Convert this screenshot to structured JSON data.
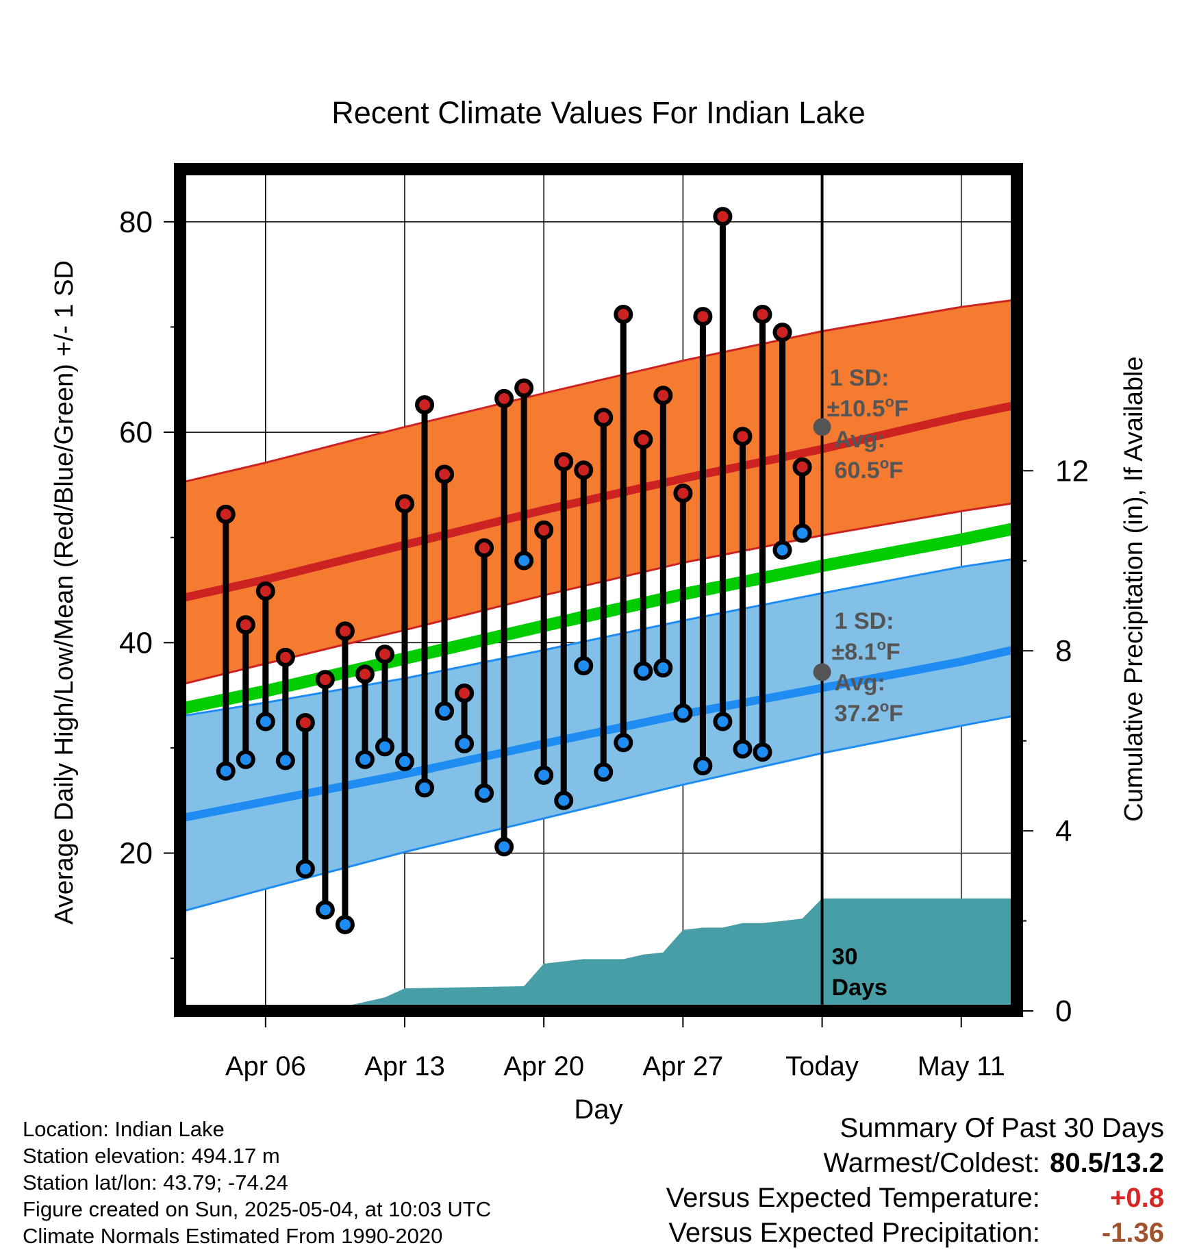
{
  "chart_data": {
    "type": "line",
    "title": "Recent Climate Values For Indian Lake",
    "xlabel": "Day",
    "ylabel": "Average Daily High/Low/Mean (Red/Blue/Green) +/- 1 SD",
    "y2label": "Cumulative Precipitation (in), If Available",
    "ylim": [
      5,
      85
    ],
    "y2lim": [
      0,
      18.7
    ],
    "yticks": [
      20,
      40,
      60,
      80
    ],
    "y2ticks": [
      0,
      4,
      8,
      12
    ],
    "x_day_range": [
      -32.3,
      9.8
    ],
    "xticks": [
      {
        "day": -28,
        "label": "Apr 06"
      },
      {
        "day": -21,
        "label": "Apr 13"
      },
      {
        "day": -14,
        "label": "Apr 20"
      },
      {
        "day": -7,
        "label": "Apr 27"
      },
      {
        "day": 0,
        "label": "Today"
      },
      {
        "day": 7,
        "label": "May 11"
      }
    ],
    "grid": true,
    "today_day": 0,
    "highs": [
      52.2,
      41.7,
      44.9,
      38.6,
      32.4,
      36.5,
      41.1,
      37.0,
      38.9,
      53.2,
      62.6,
      56.0,
      35.2,
      49.0,
      63.2,
      64.2,
      50.7,
      57.2,
      56.4,
      61.4,
      71.2,
      59.3,
      63.5,
      54.2,
      71.0,
      80.5,
      59.6,
      71.2,
      69.5,
      56.7
    ],
    "lows": [
      27.8,
      28.9,
      32.5,
      28.8,
      18.5,
      14.6,
      13.2,
      28.9,
      30.1,
      28.7,
      26.2,
      33.5,
      30.4,
      25.7,
      20.6,
      47.8,
      27.4,
      25.0,
      37.8,
      27.7,
      30.5,
      37.3,
      37.6,
      33.3,
      28.3,
      32.5,
      29.9,
      29.6,
      48.8,
      50.4
    ],
    "normal_high_mean": [
      [
        -32.3,
        44.2
      ],
      [
        -28,
        46.0
      ],
      [
        -21,
        49.3
      ],
      [
        -14,
        52.6
      ],
      [
        -7,
        55.6
      ],
      [
        0,
        58.4
      ],
      [
        7,
        61.5
      ],
      [
        9.8,
        62.6
      ]
    ],
    "normal_high_band": {
      "lower": [
        [
          -32.3,
          36.0
        ],
        [
          -28,
          38.0
        ],
        [
          -21,
          41.2
        ],
        [
          -14,
          44.5
        ],
        [
          -7,
          47.6
        ],
        [
          0,
          50.2
        ],
        [
          7,
          52.5
        ],
        [
          9.8,
          53.3
        ]
      ],
      "upper": [
        [
          -32.3,
          55.2
        ],
        [
          -28,
          57.1
        ],
        [
          -21,
          60.5
        ],
        [
          -14,
          63.7
        ],
        [
          -7,
          66.8
        ],
        [
          0,
          69.6
        ],
        [
          7,
          71.9
        ],
        [
          9.8,
          72.6
        ]
      ]
    },
    "normal_mean": [
      [
        -32.3,
        33.7
      ],
      [
        -28,
        35.4
      ],
      [
        -21,
        38.5
      ],
      [
        -14,
        41.6
      ],
      [
        -7,
        44.6
      ],
      [
        0,
        47.3
      ],
      [
        7,
        49.8
      ],
      [
        9.8,
        50.9
      ]
    ],
    "normal_low_mean": [
      [
        -32.3,
        23.3
      ],
      [
        -28,
        24.9
      ],
      [
        -21,
        27.5
      ],
      [
        -14,
        30.4
      ],
      [
        -7,
        33.2
      ],
      [
        0,
        35.7
      ],
      [
        7,
        38.2
      ],
      [
        9.8,
        39.4
      ]
    ],
    "normal_low_band": {
      "lower": [
        [
          -32.3,
          14.4
        ],
        [
          -28,
          16.6
        ],
        [
          -21,
          20.1
        ],
        [
          -14,
          23.3
        ],
        [
          -7,
          26.5
        ],
        [
          0,
          29.5
        ],
        [
          7,
          32.1
        ],
        [
          9.8,
          33.1
        ]
      ],
      "upper": [
        [
          -32.3,
          33.0
        ],
        [
          -28,
          34.3
        ],
        [
          -21,
          36.6
        ],
        [
          -14,
          39.3
        ],
        [
          -7,
          42.1
        ],
        [
          0,
          44.7
        ],
        [
          7,
          47.2
        ],
        [
          9.8,
          48.0
        ]
      ]
    },
    "precip_cumulative": [
      [
        -32.3,
        0.0
      ],
      [
        -26,
        0.0
      ],
      [
        -24,
        0.1
      ],
      [
        -23,
        0.2
      ],
      [
        -22,
        0.3
      ],
      [
        -21,
        0.5
      ],
      [
        -15,
        0.55
      ],
      [
        -14,
        1.05
      ],
      [
        -12,
        1.15
      ],
      [
        -10,
        1.15
      ],
      [
        -9,
        1.25
      ],
      [
        -8,
        1.3
      ],
      [
        -7,
        1.8
      ],
      [
        -6,
        1.85
      ],
      [
        -5,
        1.85
      ],
      [
        -4,
        1.95
      ],
      [
        -3,
        1.95
      ],
      [
        -2,
        2.0
      ],
      [
        -1,
        2.05
      ],
      [
        0,
        2.5
      ],
      [
        9.8,
        2.5
      ]
    ],
    "annotations": {
      "high_sd": "1 SD:",
      "high_sd_value": "±10.5",
      "high_avg": "Avg:",
      "high_avg_value": "60.5",
      "low_sd": "1 SD:",
      "low_sd_value": "±8.1",
      "low_avg": "Avg:",
      "low_avg_value": "37.2",
      "unit_sup": "o",
      "unit_letter": "F",
      "precip_days_number": "30",
      "precip_days_word": "Days"
    },
    "colors": {
      "high": "#cc2222",
      "high_band": "#f47b30",
      "low": "#1e8cf0",
      "low_band": "#82c0e8",
      "mean": "#00cc00",
      "precip": "#489ea6",
      "annotation": "#555555"
    }
  },
  "footer": {
    "location": "Location: Indian Lake",
    "elevation": "Station elevation: 494.17 m",
    "latlon": "Station lat/lon: 43.79; -74.24",
    "created": "Figure created on Sun, 2025-05-04, at 10:03 UTC",
    "normals": "Climate Normals Estimated From 1990-2020"
  },
  "summary": {
    "title": "Summary Of Past 30 Days",
    "warm_cold_label": "Warmest/Coldest:",
    "warm_cold_value": "80.5/13.2",
    "temp_label": "Versus Expected Temperature:",
    "temp_value": "+0.8",
    "temp_color": "#d62728",
    "precip_label": "Versus Expected Precipitation:",
    "precip_value": "-1.36",
    "precip_color": "#a0522d"
  }
}
